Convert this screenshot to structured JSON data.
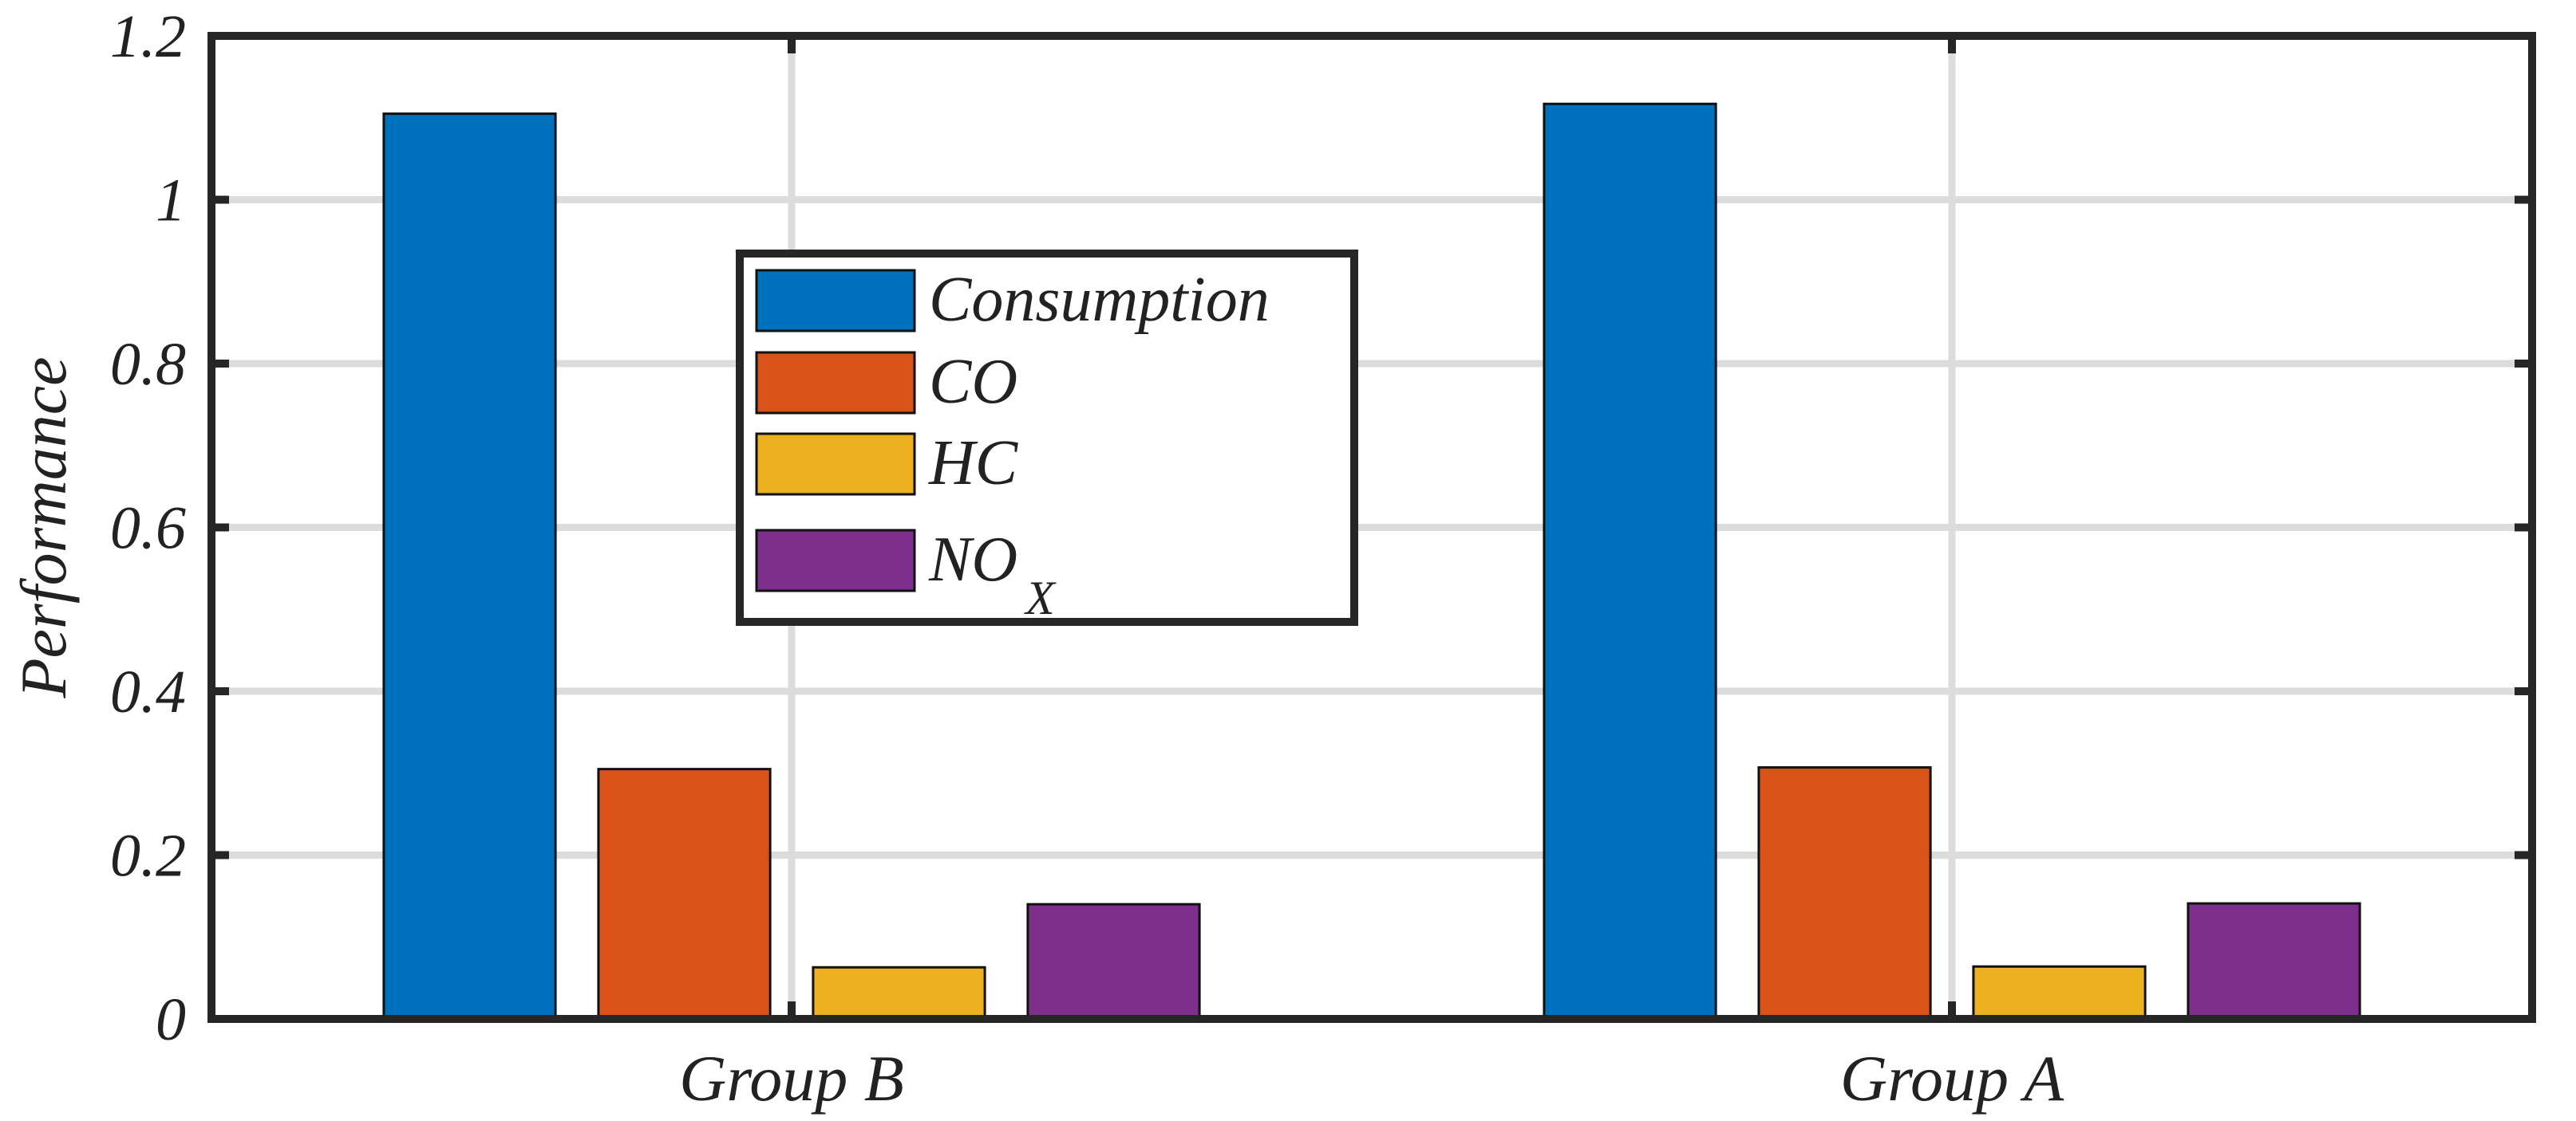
{
  "chart_data": {
    "type": "bar",
    "title": "",
    "xlabel": "",
    "ylabel": "Performance",
    "ylim": [
      0,
      1.2
    ],
    "yticks": [
      0,
      0.2,
      0.4,
      0.6,
      0.8,
      1,
      1.2
    ],
    "ytick_labels": [
      "0",
      "0.2",
      "0.4",
      "0.6",
      "0.8",
      "1",
      "1.2"
    ],
    "grid": true,
    "legend_position": "upper-left-center",
    "categories": [
      "Group B",
      "Group A"
    ],
    "series": [
      {
        "name": "Consumption",
        "label_main": "Consumption",
        "label_sub": "",
        "color": "#0072BD",
        "values": [
          1.105,
          1.117
        ]
      },
      {
        "name": "CO",
        "label_main": "CO",
        "label_sub": "",
        "color": "#D95319",
        "values": [
          0.305,
          0.307
        ]
      },
      {
        "name": "HC",
        "label_main": "HC",
        "label_sub": "",
        "color": "#EDB120",
        "values": [
          0.063,
          0.064
        ]
      },
      {
        "name": "NOX",
        "label_main": "NO",
        "label_sub": "X",
        "color": "#7E2F8E",
        "values": [
          0.14,
          0.141
        ]
      }
    ]
  }
}
